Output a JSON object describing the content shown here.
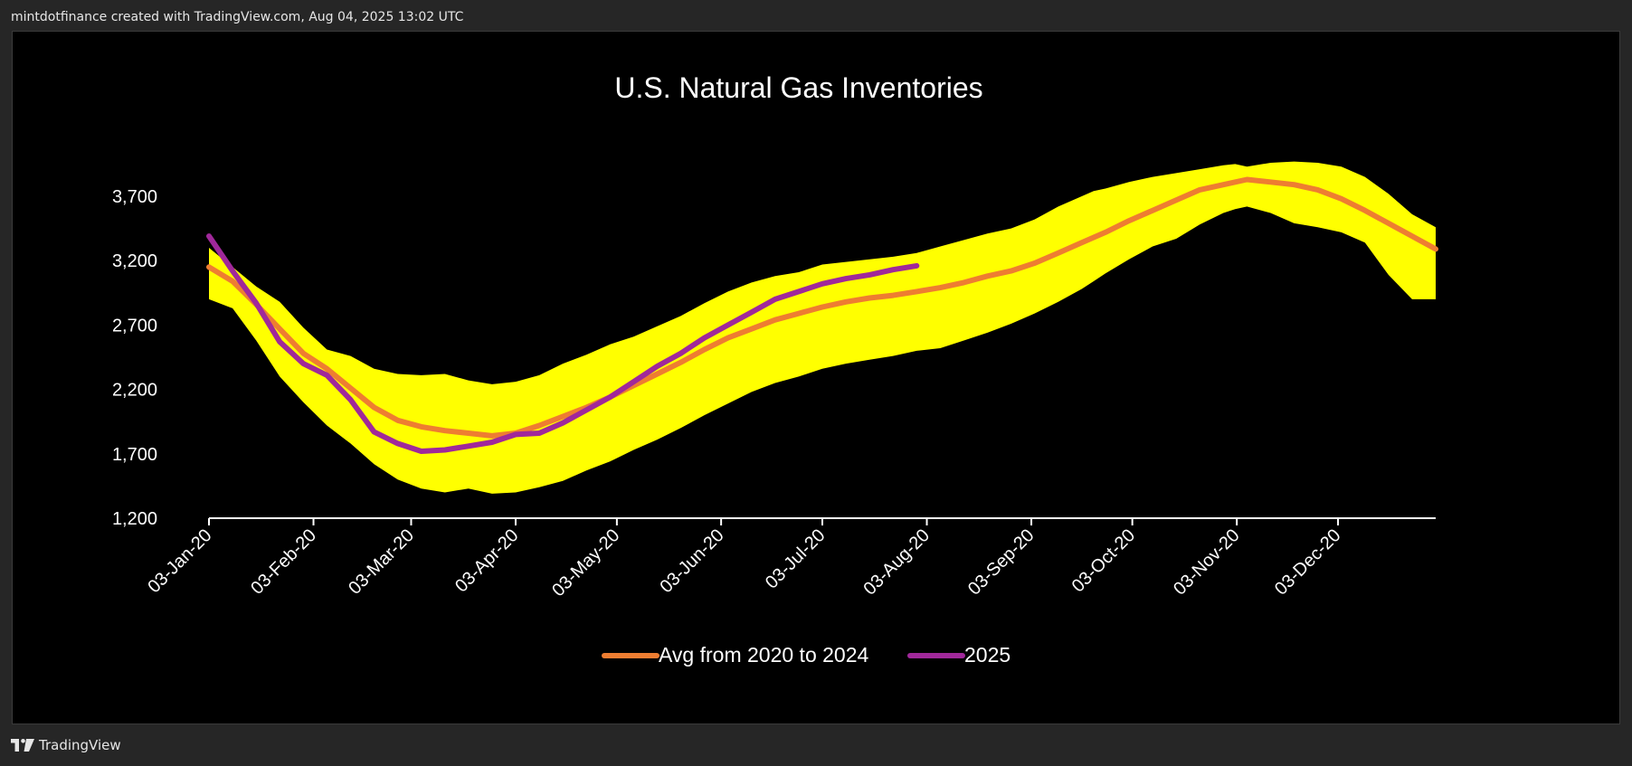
{
  "header": {
    "attribution": "mintdotfinance created with TradingView.com, Aug 04, 2025 13:02 UTC"
  },
  "footer": {
    "brand": "TradingView",
    "logo_icon": "tradingview-logo-icon"
  },
  "colors": {
    "page_bg": "#262626",
    "chart_bg": "#000000",
    "band": "#ffff00",
    "avg_line": "#ee7d31",
    "current_line": "#a0289a",
    "axis": "#ffffff",
    "text": "#ffffff"
  },
  "chart_data": {
    "type": "line",
    "title": "U.S. Natural Gas Inventories",
    "xlabel": "",
    "ylabel": "",
    "ylim": [
      1200,
      3700
    ],
    "yticks": [
      "1,200",
      "1,700",
      "2,200",
      "2,700",
      "3,200",
      "3,700"
    ],
    "ytick_values": [
      1200,
      1700,
      2200,
      2700,
      3200,
      3700
    ],
    "xlim": [
      1,
      53
    ],
    "xticks": [
      "03-Jan-20",
      "03-Feb-20",
      "03-Mar-20",
      "03-Apr-20",
      "03-May-20",
      "03-Jun-20",
      "03-Jul-20",
      "03-Aug-20",
      "03-Sep-20",
      "03-Oct-20",
      "03-Nov-20",
      "03-Dec-20"
    ],
    "xtick_weeks": [
      1,
      5.43,
      9.57,
      14,
      18.29,
      22.71,
      27,
      31.43,
      35.86,
      40.14,
      44.57,
      48.86
    ],
    "legend_position": "bottom-center",
    "grid": false,
    "band": {
      "name": "",
      "weeks": [
        1,
        2,
        3,
        4,
        5,
        6,
        7,
        8,
        9,
        10,
        11,
        12,
        13,
        14,
        15,
        16,
        17,
        18,
        19,
        20,
        21,
        22,
        23,
        24,
        25,
        26,
        27,
        28,
        29,
        30,
        31,
        32,
        33,
        34,
        35,
        36,
        37,
        38,
        38.5,
        39,
        40,
        41,
        42,
        43,
        44,
        44.5,
        45,
        46,
        47,
        48,
        49,
        50,
        51,
        52,
        53
      ],
      "upper": [
        3300,
        3150,
        3000,
        2880,
        2680,
        2510,
        2460,
        2360,
        2320,
        2310,
        2320,
        2270,
        2240,
        2260,
        2310,
        2400,
        2470,
        2550,
        2610,
        2690,
        2770,
        2870,
        2960,
        3030,
        3080,
        3110,
        3170,
        3190,
        3210,
        3230,
        3260,
        3310,
        3360,
        3410,
        3450,
        3520,
        3620,
        3700,
        3740,
        3760,
        3810,
        3850,
        3880,
        3910,
        3940,
        3950,
        3930,
        3960,
        3970,
        3960,
        3930,
        3850,
        3720,
        3560,
        3460
      ],
      "lower": [
        2900,
        2830,
        2580,
        2300,
        2100,
        1920,
        1780,
        1620,
        1500,
        1430,
        1400,
        1430,
        1390,
        1400,
        1440,
        1490,
        1570,
        1640,
        1730,
        1810,
        1900,
        2000,
        2090,
        2180,
        2250,
        2300,
        2360,
        2400,
        2430,
        2460,
        2500,
        2520,
        2580,
        2640,
        2710,
        2790,
        2880,
        2980,
        3040,
        3100,
        3210,
        3310,
        3370,
        3480,
        3570,
        3600,
        3620,
        3570,
        3490,
        3460,
        3420,
        3340,
        3090,
        2900,
        2900
      ]
    },
    "series": [
      {
        "name": "Avg from 2020 to 2024",
        "color": "#ee7d31",
        "weeks": [
          1,
          2,
          3,
          4,
          5,
          6,
          7,
          8,
          9,
          10,
          11,
          12,
          13,
          14,
          15,
          16,
          17,
          18,
          19,
          20,
          21,
          22,
          23,
          24,
          25,
          26,
          27,
          28,
          29,
          30,
          31,
          32,
          33,
          34,
          35,
          36,
          37,
          38,
          39,
          40,
          41,
          42,
          43,
          44,
          45,
          46,
          47,
          48,
          49,
          50,
          51,
          52,
          53
        ],
        "values": [
          3150,
          3040,
          2860,
          2670,
          2480,
          2360,
          2210,
          2060,
          1960,
          1910,
          1880,
          1860,
          1840,
          1860,
          1920,
          1990,
          2060,
          2140,
          2230,
          2320,
          2410,
          2510,
          2600,
          2670,
          2740,
          2790,
          2840,
          2880,
          2910,
          2930,
          2960,
          2990,
          3030,
          3080,
          3120,
          3180,
          3260,
          3340,
          3420,
          3510,
          3590,
          3670,
          3750,
          3790,
          3830,
          3810,
          3790,
          3750,
          3680,
          3590,
          3490,
          3390,
          3290
        ]
      },
      {
        "name": "2025",
        "color": "#a0289a",
        "weeks": [
          1,
          2,
          3,
          4,
          5,
          6,
          7,
          8,
          9,
          10,
          11,
          12,
          13,
          14,
          15,
          16,
          17,
          18,
          19,
          20,
          21,
          22,
          23,
          24,
          25,
          26,
          27,
          28,
          29,
          30,
          31
        ],
        "values": [
          3390,
          3120,
          2870,
          2570,
          2400,
          2310,
          2120,
          1870,
          1780,
          1720,
          1730,
          1760,
          1790,
          1850,
          1860,
          1940,
          2040,
          2140,
          2260,
          2380,
          2480,
          2600,
          2700,
          2800,
          2900,
          2960,
          3020,
          3060,
          3090,
          3130,
          3160
        ]
      }
    ]
  }
}
